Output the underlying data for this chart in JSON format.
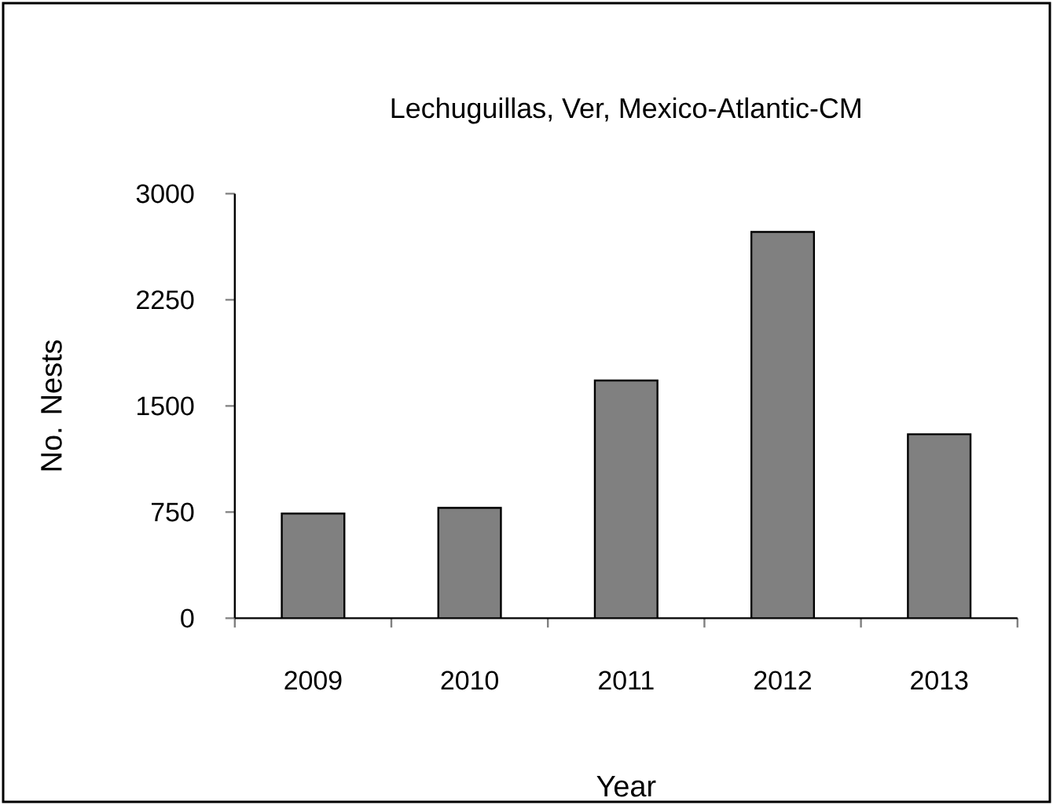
{
  "chart_data": {
    "type": "bar",
    "title": "Lechuguillas, Ver, Mexico-Atlantic-CM",
    "xlabel": "Year",
    "ylabel": "No. Nests",
    "categories": [
      "2009",
      "2010",
      "2011",
      "2012",
      "2013"
    ],
    "values": [
      740,
      780,
      1680,
      2730,
      1300
    ],
    "color": "#808080",
    "ylim": [
      0,
      3000
    ],
    "yticks": [
      0,
      750,
      1500,
      2250,
      3000
    ],
    "grid": false
  }
}
